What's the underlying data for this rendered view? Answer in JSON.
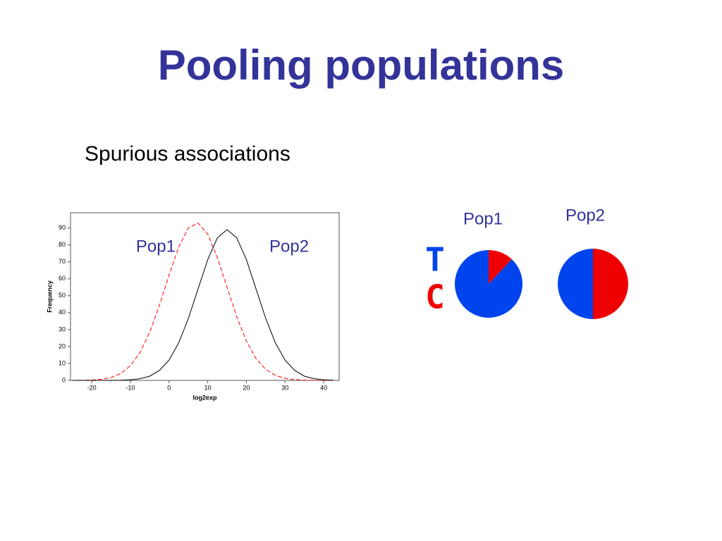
{
  "title": "Pooling populations",
  "subtitle": "Spurious associations",
  "chart_data": [
    {
      "type": "line",
      "x_label": "log2exp",
      "y_label": "Frequency",
      "x": [
        -25,
        -22.5,
        -20,
        -17.5,
        -15,
        -12.5,
        -10,
        -7.5,
        -5,
        -2.5,
        0,
        2.5,
        5,
        7.5,
        10,
        12.5,
        15,
        17.5,
        20,
        22.5,
        25,
        27.5,
        30,
        32.5,
        35,
        37.5,
        40,
        42.5
      ],
      "series": [
        {
          "name": "Pop1",
          "color": "#ff0000",
          "dashed": true,
          "values": [
            0.02,
            0.07,
            0.23,
            0.67,
            1.7,
            4.1,
            8.7,
            16.5,
            28.5,
            44.3,
            62.2,
            78.8,
            90.0,
            92.9,
            86.4,
            72.5,
            55.0,
            37.6,
            23.2,
            12.9,
            6.5,
            3.0,
            1.2,
            0.45,
            0.15,
            0.05,
            0.02,
            0
          ]
        },
        {
          "name": "Pop2",
          "color": "#000000",
          "dashed": false,
          "values": [
            0,
            0,
            0,
            0.01,
            0.03,
            0.11,
            0.34,
            0.99,
            2.5,
            5.9,
            12.0,
            22.2,
            36.6,
            54.0,
            71.3,
            84.2,
            89,
            84.2,
            71.3,
            54.0,
            36.6,
            22.2,
            12.0,
            5.9,
            2.5,
            0.99,
            0.34,
            0.11
          ]
        }
      ],
      "xlim": [
        -25.5,
        44
      ],
      "ylim": [
        0,
        99
      ],
      "xticks": [
        -20,
        -10,
        0,
        10,
        20,
        30,
        40
      ],
      "yticks": [
        0,
        10,
        20,
        30,
        40,
        50,
        60,
        70,
        80,
        90
      ]
    },
    {
      "type": "pie",
      "title": "Pop1",
      "categories": [
        "T",
        "C"
      ],
      "colors": [
        "#0044ee",
        "#ee0000"
      ],
      "values": [
        88,
        12
      ]
    },
    {
      "type": "pie",
      "title": "Pop2",
      "colors": [
        "#0044ee",
        "#ee0000"
      ],
      "values": [
        50,
        50
      ]
    }
  ]
}
